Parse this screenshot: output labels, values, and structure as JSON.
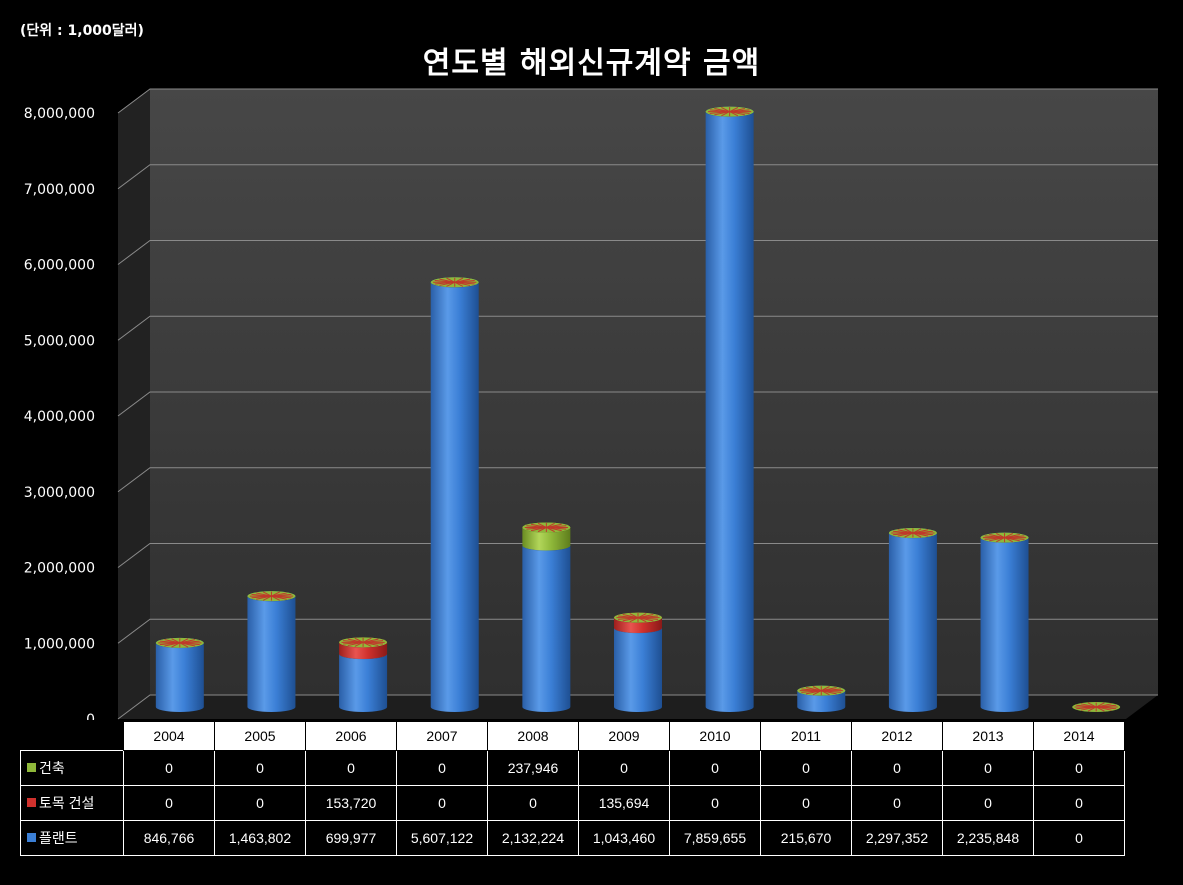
{
  "unit_label": "(단위 : 1,000달러)",
  "chart_data": {
    "type": "bar",
    "stacked": true,
    "style": "3d-cylinder",
    "title": "연도별 해외신규계약 금액",
    "unit": "(단위 : 1,000달러)",
    "categories": [
      "2004",
      "2005",
      "2006",
      "2007",
      "2008",
      "2009",
      "2010",
      "2011",
      "2012",
      "2013",
      "2014"
    ],
    "series": [
      {
        "name": "플랜트",
        "color": "#3b7fd6",
        "values": [
          846766,
          1463802,
          699977,
          5607122,
          2132224,
          1043460,
          7859655,
          215670,
          2297352,
          2235848,
          0
        ],
        "labels": [
          "846,766",
          "1,463,802",
          "699,977",
          "5,607,122",
          "2,132,224",
          "1,043,460",
          "7,859,655",
          "215,670",
          "2,297,352",
          "2,235,848",
          "0"
        ]
      },
      {
        "name": "토목 건설",
        "color": "#d0312d",
        "values": [
          0,
          0,
          153720,
          0,
          0,
          135694,
          0,
          0,
          0,
          0,
          0
        ],
        "labels": [
          "0",
          "0",
          "153,720",
          "0",
          "0",
          "135,694",
          "0",
          "0",
          "0",
          "0",
          "0"
        ]
      },
      {
        "name": "건축",
        "color": "#8fb83a",
        "values": [
          0,
          0,
          0,
          0,
          237946,
          0,
          0,
          0,
          0,
          0,
          0
        ],
        "labels": [
          "0",
          "0",
          "0",
          "0",
          "237,946",
          "0",
          "0",
          "0",
          "0",
          "0",
          "0"
        ]
      }
    ],
    "ylim": [
      0,
      8000000
    ],
    "yticks": [
      "0",
      "1,000,000",
      "2,000,000",
      "3,000,000",
      "4,000,000",
      "5,000,000",
      "6,000,000",
      "7,000,000",
      "8,000,000"
    ],
    "grid": true,
    "legend": "data-table"
  },
  "table_rows": [
    {
      "label": "건축",
      "color": "#8fb83a",
      "series": 2
    },
    {
      "label": "토목 건설",
      "color": "#d0312d",
      "series": 1
    },
    {
      "label": "플랜트",
      "color": "#3b7fd6",
      "series": 0
    }
  ]
}
